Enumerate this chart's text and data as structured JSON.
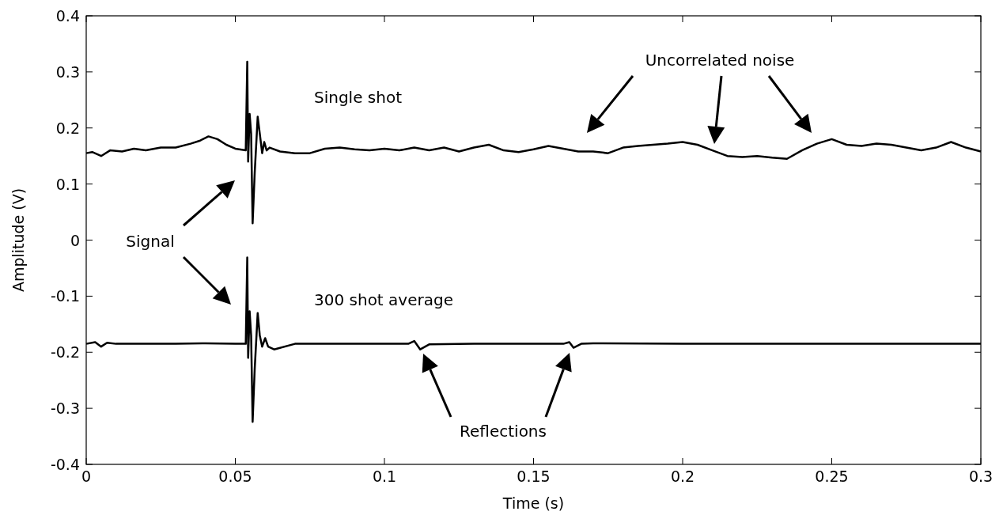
{
  "chart_data": {
    "type": "line",
    "xlabel": "Time (s)",
    "ylabel": "Amplitude (V)",
    "xlim": [
      0,
      0.3
    ],
    "ylim": [
      -0.4,
      0.4
    ],
    "xticks": [
      0,
      0.05,
      0.1,
      0.15,
      0.2,
      0.25,
      0.3
    ],
    "yticks": [
      -0.4,
      -0.3,
      -0.2,
      -0.1,
      0,
      0.1,
      0.2,
      0.3,
      0.4
    ],
    "grid": false,
    "annotations": [
      "Signal",
      "Uncorrelated noise",
      "Reflections"
    ],
    "series": [
      {
        "name": "Single shot",
        "color": "#000000",
        "x": [
          0,
          0.002,
          0.005,
          0.008,
          0.012,
          0.016,
          0.02,
          0.025,
          0.03,
          0.035,
          0.038,
          0.041,
          0.044,
          0.047,
          0.05,
          0.0535,
          0.054,
          0.0543,
          0.0548,
          0.0553,
          0.0558,
          0.0565,
          0.0575,
          0.0582,
          0.059,
          0.0597,
          0.0605,
          0.0615,
          0.065,
          0.07,
          0.075,
          0.08,
          0.085,
          0.09,
          0.095,
          0.1,
          0.105,
          0.11,
          0.115,
          0.12,
          0.125,
          0.13,
          0.135,
          0.14,
          0.145,
          0.15,
          0.155,
          0.16,
          0.165,
          0.17,
          0.175,
          0.18,
          0.185,
          0.19,
          0.195,
          0.2,
          0.205,
          0.21,
          0.215,
          0.22,
          0.225,
          0.23,
          0.235,
          0.24,
          0.245,
          0.25,
          0.255,
          0.26,
          0.265,
          0.27,
          0.275,
          0.28,
          0.285,
          0.29,
          0.295,
          0.3
        ],
        "values": [
          0.155,
          0.157,
          0.15,
          0.16,
          0.158,
          0.163,
          0.16,
          0.165,
          0.165,
          0.172,
          0.177,
          0.185,
          0.18,
          0.17,
          0.163,
          0.16,
          0.318,
          0.14,
          0.225,
          0.19,
          0.03,
          0.12,
          0.22,
          0.19,
          0.155,
          0.175,
          0.16,
          0.165,
          0.158,
          0.155,
          0.155,
          0.163,
          0.165,
          0.162,
          0.16,
          0.163,
          0.16,
          0.165,
          0.16,
          0.165,
          0.158,
          0.165,
          0.17,
          0.16,
          0.157,
          0.162,
          0.168,
          0.163,
          0.158,
          0.158,
          0.155,
          0.165,
          0.168,
          0.17,
          0.172,
          0.175,
          0.17,
          0.16,
          0.15,
          0.148,
          0.15,
          0.147,
          0.145,
          0.16,
          0.172,
          0.18,
          0.17,
          0.168,
          0.172,
          0.17,
          0.165,
          0.16,
          0.165,
          0.175,
          0.165,
          0.158
        ]
      },
      {
        "name": "300 shot average",
        "color": "#000000",
        "x": [
          0,
          0.003,
          0.005,
          0.007,
          0.01,
          0.02,
          0.03,
          0.04,
          0.05,
          0.0535,
          0.054,
          0.0543,
          0.0548,
          0.0553,
          0.0558,
          0.0565,
          0.0575,
          0.0582,
          0.059,
          0.06,
          0.061,
          0.063,
          0.07,
          0.08,
          0.09,
          0.1,
          0.108,
          0.11,
          0.112,
          0.115,
          0.13,
          0.15,
          0.16,
          0.162,
          0.1634,
          0.166,
          0.17,
          0.2,
          0.25,
          0.3
        ],
        "values": [
          -0.185,
          -0.182,
          -0.19,
          -0.183,
          -0.185,
          -0.185,
          -0.185,
          -0.184,
          -0.185,
          -0.185,
          -0.031,
          -0.21,
          -0.127,
          -0.17,
          -0.324,
          -0.23,
          -0.13,
          -0.17,
          -0.19,
          -0.175,
          -0.19,
          -0.195,
          -0.185,
          -0.185,
          -0.185,
          -0.185,
          -0.185,
          -0.18,
          -0.195,
          -0.186,
          -0.185,
          -0.185,
          -0.185,
          -0.182,
          -0.192,
          -0.185,
          -0.184,
          -0.185,
          -0.185,
          -0.185
        ]
      }
    ]
  }
}
